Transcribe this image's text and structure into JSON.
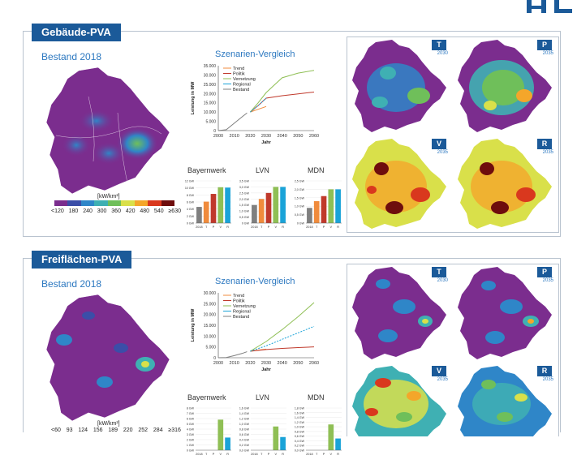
{
  "colors": {
    "brand": "#1b5a99",
    "accent_title": "#2c78c0",
    "map_base": "#7b2d8e",
    "trend": "#f08b3c",
    "politik": "#c0392b",
    "vernetzung": "#8fbf55",
    "regional": "#1aa3d8",
    "bestand": "#7f7f7f"
  },
  "panels": [
    {
      "tab": "Gebäude-PVA",
      "bestand_title": "Bestand 2018",
      "legend_unit": "[kW/km²]",
      "legend_ticks": [
        "<120",
        "180",
        "240",
        "300",
        "360",
        "420",
        "480",
        "540",
        "≥630"
      ],
      "scenario_title": "Szenarien-Vergleich",
      "mini_maps": [
        {
          "badge": "T",
          "year": "2030"
        },
        {
          "badge": "P",
          "year": "2035"
        },
        {
          "badge": "V",
          "year": "2035"
        },
        {
          "badge": "R",
          "year": "2035"
        }
      ],
      "small_titles": [
        "Bayernwerk",
        "LVN",
        "MDN"
      ]
    },
    {
      "tab": "Freiflächen-PVA",
      "bestand_title": "Bestand 2018",
      "legend_unit": "[kW/km²]",
      "legend_ticks": [
        "<60",
        "93",
        "124",
        "156",
        "189",
        "220",
        "252",
        "284",
        "≥316"
      ],
      "scenario_title": "Szenarien-Vergleich",
      "mini_maps": [
        {
          "badge": "T",
          "year": "2030"
        },
        {
          "badge": "P",
          "year": "2035"
        },
        {
          "badge": "V",
          "year": "2035"
        },
        {
          "badge": "R",
          "year": "2035"
        }
      ],
      "small_titles": [
        "Bayernwerk",
        "LVN",
        "MDN"
      ]
    }
  ],
  "chart_data": [
    {
      "type": "line",
      "title": "Szenarien-Vergleich",
      "xlabel": "Jahr",
      "ylabel": "Leistung in MW",
      "xlim": [
        2000,
        2060
      ],
      "ylim": [
        0,
        35000
      ],
      "xticks": [
        2000,
        2010,
        2020,
        2030,
        2040,
        2050,
        2060
      ],
      "yticks": [
        "0",
        "5.000",
        "10.000",
        "15.000",
        "20.000",
        "25.000",
        "30.000",
        "35.000"
      ],
      "legend": "top-left",
      "series": [
        {
          "name": "Trend",
          "x": [
            2020,
            2025,
            2030
          ],
          "y": [
            10000,
            11500,
            13000
          ]
        },
        {
          "name": "Politik",
          "x": [
            2020,
            2025,
            2030,
            2040,
            2050,
            2060
          ],
          "y": [
            10000,
            13500,
            17500,
            18800,
            19800,
            20800
          ]
        },
        {
          "name": "Vernetzung",
          "x": [
            2020,
            2025,
            2030,
            2040,
            2050,
            2060
          ],
          "y": [
            10000,
            15000,
            20500,
            28500,
            31000,
            32500
          ]
        },
        {
          "name": "Regional",
          "x": [
            2020,
            2025,
            2030
          ],
          "y": [
            10000,
            13500,
            17500
          ]
        },
        {
          "name": "Bestand",
          "x": [
            2000,
            2005,
            2010,
            2015,
            2018
          ],
          "y": [
            0,
            500,
            4000,
            7500,
            9500
          ]
        }
      ]
    },
    {
      "type": "bar",
      "title": "Bayernwerk",
      "categories": [
        "2018",
        "T",
        "P",
        "V",
        "R"
      ],
      "values": [
        4.6,
        6.1,
        8.3,
        10.2,
        10.1
      ],
      "ylim": [
        0,
        12
      ],
      "yticks": [
        "0 GW",
        "2 GW",
        "4 GW",
        "6 GW",
        "8 GW",
        "10 GW",
        "12 GW"
      ]
    },
    {
      "type": "bar",
      "title": "LVN",
      "categories": [
        "2018",
        "T",
        "P",
        "V",
        "R"
      ],
      "values": [
        1.5,
        2.0,
        2.5,
        3.0,
        3.0
      ],
      "ylim": [
        0,
        3.5
      ],
      "yticks": [
        "0 GW",
        "0,5 GW",
        "1,0 GW",
        "1,5 GW",
        "2,0 GW",
        "2,5 GW",
        "3,0 GW",
        "3,5 GW"
      ]
    },
    {
      "type": "bar",
      "title": "MDN",
      "categories": [
        "2018",
        "T",
        "P",
        "V",
        "R"
      ],
      "values": [
        0.9,
        1.3,
        1.6,
        2.0,
        2.0
      ],
      "ylim": [
        0,
        2.5
      ],
      "yticks": [
        "0 GW",
        "0,5 GW",
        "1,0 GW",
        "1,5 GW",
        "2,0 GW",
        "2,5 GW"
      ]
    },
    {
      "type": "line",
      "title": "Szenarien-Vergleich",
      "xlabel": "Jahr",
      "ylabel": "Leistung in MW",
      "xlim": [
        2000,
        2060
      ],
      "ylim": [
        0,
        30000
      ],
      "xticks": [
        2000,
        2010,
        2020,
        2030,
        2040,
        2050,
        2060
      ],
      "yticks": [
        "0",
        "5.000",
        "10.000",
        "15.000",
        "20.000",
        "25.000",
        "30.000"
      ],
      "legend": "top-left",
      "series": [
        {
          "name": "Trend",
          "x": [
            2020,
            2025,
            2030
          ],
          "y": [
            3000,
            3500,
            4000
          ]
        },
        {
          "name": "Politik",
          "x": [
            2020,
            2030,
            2040,
            2050,
            2060
          ],
          "y": [
            3000,
            3800,
            4300,
            4700,
            5000
          ]
        },
        {
          "name": "Vernetzung",
          "x": [
            2020,
            2030,
            2040,
            2050,
            2060
          ],
          "y": [
            3000,
            7500,
            13000,
            19000,
            25500
          ]
        },
        {
          "name": "Regional",
          "x": [
            2020,
            2030,
            2040,
            2050,
            2060
          ],
          "y": [
            3000,
            5500,
            8500,
            11500,
            14500
          ]
        },
        {
          "name": "Bestand",
          "x": [
            2000,
            2005,
            2010,
            2015,
            2018
          ],
          "y": [
            0,
            100,
            1000,
            2000,
            2800
          ]
        }
      ]
    },
    {
      "type": "bar",
      "title": "Bayernwerk",
      "categories": [
        "2018",
        "T",
        "P",
        "V",
        "R"
      ],
      "values": [
        0,
        0,
        0,
        5.8,
        2.4
      ],
      "ylim": [
        0,
        8
      ],
      "yticks": [
        "0 GW",
        "1 GW",
        "2 GW",
        "3 GW",
        "4 GW",
        "5 GW",
        "6 GW",
        "7 GW",
        "8 GW"
      ]
    },
    {
      "type": "bar",
      "title": "LVN",
      "categories": [
        "2018",
        "T",
        "P",
        "V",
        "R"
      ],
      "values": [
        0,
        0,
        0,
        0.9,
        0.5
      ],
      "ylim": [
        0,
        1.6
      ],
      "yticks": [
        "0,0 GW",
        "0,2 GW",
        "0,4 GW",
        "0,6 GW",
        "0,8 GW",
        "1,0 GW",
        "1,2 GW",
        "1,4 GW",
        "1,6 GW"
      ]
    },
    {
      "type": "bar",
      "title": "MDN",
      "categories": [
        "2018",
        "T",
        "P",
        "V",
        "R"
      ],
      "values": [
        0,
        0,
        0,
        1.1,
        0.5
      ],
      "ylim": [
        0,
        1.8
      ],
      "yticks": [
        "0,0 GW",
        "0,2 GW",
        "0,4 GW",
        "0,6 GW",
        "0,8 GW",
        "1,0 GW",
        "1,2 GW",
        "1,4 GW",
        "1,6 GW",
        "1,8 GW"
      ]
    }
  ]
}
